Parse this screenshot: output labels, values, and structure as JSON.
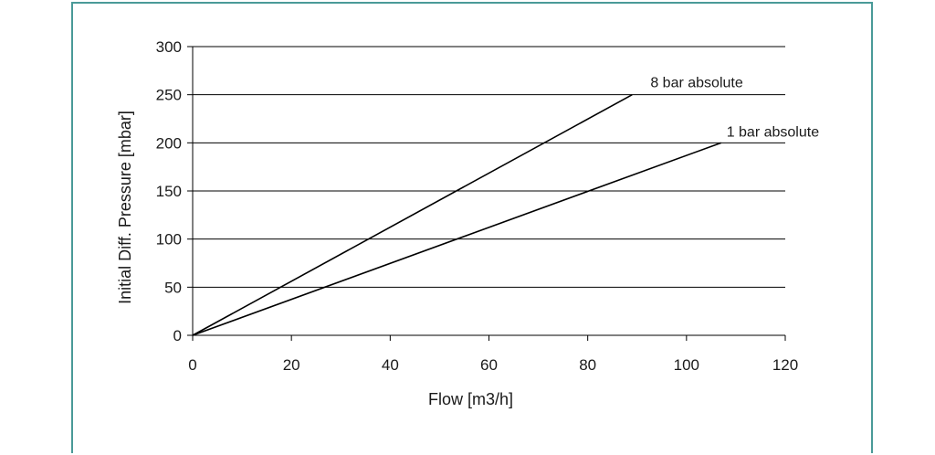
{
  "chart_data": {
    "type": "line",
    "title": "",
    "xlabel": "Flow [m3/h]",
    "ylabel": "Initial Diff. Pressure [mbar]",
    "xlim": [
      0,
      120
    ],
    "ylim": [
      0,
      300
    ],
    "x_ticks": [
      0,
      20,
      40,
      60,
      80,
      100,
      120
    ],
    "y_ticks": [
      0,
      50,
      100,
      150,
      200,
      250,
      300
    ],
    "grid": "horizontal",
    "line_color": "#000000",
    "frame_color": "#4a9a98",
    "series": [
      {
        "name": "8 bar absolute",
        "x": [
          0,
          89
        ],
        "y": [
          0,
          250
        ]
      },
      {
        "name": "1 bar absolute",
        "x": [
          0,
          107
        ],
        "y": [
          0,
          200
        ]
      }
    ]
  }
}
